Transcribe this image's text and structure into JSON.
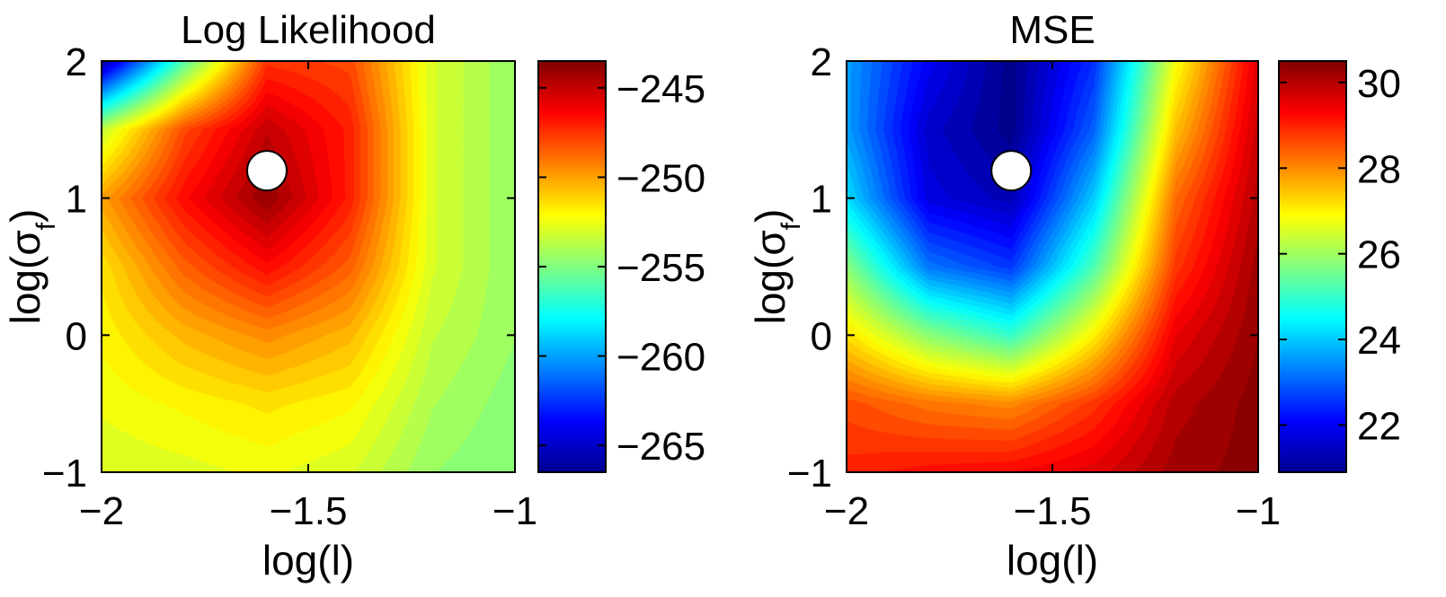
{
  "chart_data": [
    {
      "type": "heatmap",
      "title": "Log Likelihood",
      "xlabel": "log(l)",
      "ylabel": "log(σ_f)",
      "ylabel_main": "log(σ",
      "ylabel_sub": "f",
      "ylabel_close": ")",
      "xlim": [
        -2,
        -1
      ],
      "ylim": [
        -1,
        2
      ],
      "x_ticks": [
        -2,
        -1.5,
        -1
      ],
      "x_tick_labels": [
        "−2",
        "−1.5",
        "−1"
      ],
      "y_ticks": [
        -1,
        0,
        1,
        2
      ],
      "y_tick_labels": [
        "−1",
        "0",
        "1",
        "2"
      ],
      "colorbar": {
        "range": [
          -266.5,
          -243.5
        ],
        "ticks": [
          -245,
          -250,
          -255,
          -260,
          -265
        ],
        "tick_labels": [
          "−245",
          "−250",
          "−255",
          "−260",
          "−265"
        ]
      },
      "x": [
        -2.0,
        -1.8,
        -1.6,
        -1.4,
        -1.2,
        -1.0
      ],
      "y": [
        -1.0,
        -0.5,
        0.0,
        0.5,
        1.0,
        1.5,
        2.0
      ],
      "z": [
        [
          -253.0,
          -252.8,
          -252.5,
          -253.0,
          -254.5,
          -255.0
        ],
        [
          -252.5,
          -252.0,
          -251.5,
          -252.0,
          -254.0,
          -254.8
        ],
        [
          -252.0,
          -250.5,
          -249.5,
          -250.5,
          -253.5,
          -254.5
        ],
        [
          -251.5,
          -248.5,
          -246.5,
          -248.5,
          -253.0,
          -254.5
        ],
        [
          -250.0,
          -246.5,
          -244.0,
          -247.0,
          -253.0,
          -254.5
        ],
        [
          -253.5,
          -248.0,
          -245.0,
          -247.0,
          -253.0,
          -254.5
        ],
        [
          -266.0,
          -256.0,
          -247.5,
          -248.0,
          -253.0,
          -254.5
        ]
      ],
      "marker": {
        "x": -1.6,
        "y": 1.2
      }
    },
    {
      "type": "heatmap",
      "title": "MSE",
      "xlabel": "log(l)",
      "ylabel": "log(σ_f)",
      "ylabel_main": "log(σ",
      "ylabel_sub": "f",
      "ylabel_close": ")",
      "xlim": [
        -2,
        -1
      ],
      "ylim": [
        -1,
        2
      ],
      "x_ticks": [
        -2,
        -1.5,
        -1
      ],
      "x_tick_labels": [
        "−2",
        "−1.5",
        "−1"
      ],
      "y_ticks": [
        -1,
        0,
        1,
        2
      ],
      "y_tick_labels": [
        "−1",
        "0",
        "1",
        "2"
      ],
      "colorbar": {
        "range": [
          20.9,
          30.5
        ],
        "ticks": [
          30,
          28,
          26,
          24,
          22
        ],
        "tick_labels": [
          "30",
          "28",
          "26",
          "24",
          "22"
        ]
      },
      "x": [
        -2.0,
        -1.8,
        -1.6,
        -1.4,
        -1.2,
        -1.0
      ],
      "y": [
        -1.0,
        -0.5,
        0.0,
        0.5,
        1.0,
        1.5,
        2.0
      ],
      "z": [
        [
          29.0,
          29.2,
          29.3,
          29.6,
          30.2,
          30.4
        ],
        [
          28.6,
          28.2,
          28.0,
          28.8,
          30.0,
          30.4
        ],
        [
          27.2,
          25.8,
          25.0,
          27.0,
          29.5,
          30.3
        ],
        [
          25.8,
          23.2,
          22.6,
          25.2,
          28.8,
          30.2
        ],
        [
          24.2,
          21.8,
          21.4,
          24.0,
          28.3,
          30.0
        ],
        [
          23.6,
          21.6,
          21.0,
          23.0,
          27.5,
          29.8
        ],
        [
          23.6,
          22.0,
          21.0,
          22.5,
          26.8,
          29.6
        ]
      ],
      "marker": {
        "x": -1.6,
        "y": 1.2
      }
    }
  ]
}
